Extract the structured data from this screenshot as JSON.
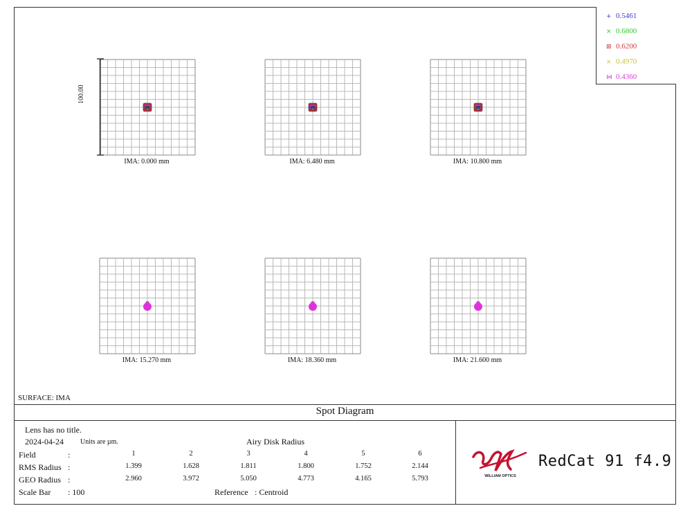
{
  "chart_data": {
    "type": "scatter",
    "title": "Spot Diagram",
    "surface": "SURFACE: IMA",
    "scale_bar_label": "100.00",
    "fields": [
      {
        "label": "IMA: 0.000 mm",
        "spot": "square"
      },
      {
        "label": "IMA: 6.480 mm",
        "spot": "square"
      },
      {
        "label": "IMA: 10.800 mm",
        "spot": "square"
      },
      {
        "label": "IMA: 15.270 mm",
        "spot": "blob"
      },
      {
        "label": "IMA: 18.360 mm",
        "spot": "blob"
      },
      {
        "label": "IMA: 21.600 mm",
        "spot": "blob"
      }
    ],
    "legend": [
      {
        "wavelength": "0.5461",
        "marker": "+",
        "color": "#3a3ad6"
      },
      {
        "wavelength": "0.6800",
        "marker": "×",
        "color": "#35c635"
      },
      {
        "wavelength": "0.6200",
        "marker": "⊠",
        "color": "#d23b3b"
      },
      {
        "wavelength": "0.4970",
        "marker": "×",
        "color": "#c9c23c"
      },
      {
        "wavelength": "0.4360",
        "marker": "⋈",
        "color": "#d43fd4"
      }
    ],
    "table": {
      "field_numbers": [
        "1",
        "2",
        "3",
        "4",
        "5",
        "6"
      ],
      "rms_radius": [
        "1.399",
        "1.628",
        "1.811",
        "1.800",
        "1.752",
        "2.144"
      ],
      "geo_radius": [
        "2.960",
        "3.972",
        "5.050",
        "4.773",
        "4.165",
        "5.793"
      ]
    }
  },
  "info": {
    "lens_title": "Lens has no title.",
    "date": "2024-04-24",
    "units": "Units are µm.",
    "airy_label": "Airy Disk Radius",
    "field_label": "Field",
    "rms_label": "RMS Radius",
    "geo_label": "GEO Radius",
    "colon": ":",
    "scale_bar_label": "Scale Bar",
    "scale_bar_value": ": 100",
    "reference_label": "Reference",
    "reference_value": ":   Centroid"
  },
  "branding": {
    "logo_text": "WILLIAM OPTICS",
    "product_name": "RedCat 91   f4.9",
    "brand_red": "#c4122f"
  }
}
